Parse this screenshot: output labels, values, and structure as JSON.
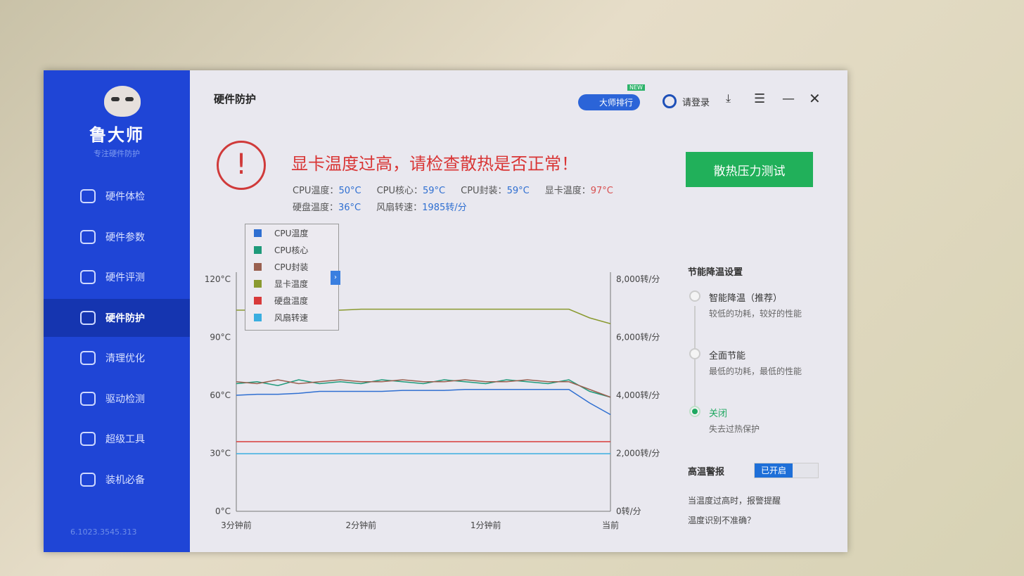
{
  "sidebar": {
    "brand": "鲁大师",
    "slogan": "专注硬件防护",
    "version": "6.1023.3545.313",
    "items": [
      {
        "label": "硬件体检"
      },
      {
        "label": "硬件参数"
      },
      {
        "label": "硬件评测"
      },
      {
        "label": "硬件防护",
        "active": true
      },
      {
        "label": "清理优化"
      },
      {
        "label": "驱动检测"
      },
      {
        "label": "超级工具"
      },
      {
        "label": "装机必备"
      }
    ]
  },
  "header": {
    "title": "硬件防护",
    "rank_label": "大师排行",
    "new_badge": "NEW",
    "login_label": "请登录"
  },
  "alert": {
    "message": "显卡温度过高，请检查散热是否正常！",
    "stats": [
      {
        "label": "CPU温度：",
        "value": "50°C"
      },
      {
        "label": "CPU核心：",
        "value": "59°C"
      },
      {
        "label": "CPU封装：",
        "value": "59°C"
      },
      {
        "label": "显卡温度：",
        "value": "97°C",
        "hot": true
      },
      {
        "label": "硬盘温度：",
        "value": "36°C"
      },
      {
        "label": "风扇转速：",
        "value": "1985转/分"
      }
    ]
  },
  "stress_test_button": "散热压力测试",
  "settings": {
    "title": "节能降温设置",
    "options": [
      {
        "label": "智能降温（推荐）",
        "desc": "较低的功耗，较好的性能",
        "selected": false
      },
      {
        "label": "全面节能",
        "desc": "最低的功耗，最低的性能",
        "selected": false
      },
      {
        "label": "关闭",
        "desc": "失去过热保护",
        "selected": true
      }
    ],
    "alarm_label": "高温警报",
    "alarm_state": "已开启",
    "alarm_desc": "当温度过高时，报警提醒",
    "inaccurate_link": "温度识别不准确？"
  },
  "colors": {
    "accent": "#1f45d6",
    "alert": "#d93636",
    "green": "#21b05a"
  },
  "chart_data": {
    "type": "line",
    "x_ticks": [
      "3分钟前",
      "2分钟前",
      "1分钟前",
      "当前"
    ],
    "y_left": {
      "ticks": [
        "0°C",
        "30°C",
        "60°C",
        "90°C",
        "120°C"
      ],
      "range": [
        0,
        120
      ]
    },
    "y_right": {
      "ticks": [
        "0转/分",
        "2,000转/分",
        "4,000转/分",
        "6,000转/分",
        "8,000转/分"
      ],
      "range": [
        0,
        8000
      ]
    },
    "x_seconds_ago": [
      180,
      170,
      160,
      150,
      140,
      130,
      120,
      110,
      100,
      90,
      80,
      70,
      60,
      50,
      40,
      30,
      20,
      10,
      0
    ],
    "series": [
      {
        "name": "CPU温度",
        "color": "#2f6fd1",
        "axis": "left",
        "values": [
          60,
          60.5,
          60.5,
          61,
          62,
          62,
          62,
          62,
          62.5,
          62.5,
          62.5,
          63,
          63,
          63,
          63,
          63,
          63,
          56,
          50
        ]
      },
      {
        "name": "CPU核心",
        "color": "#1f9a7a",
        "axis": "left",
        "values": [
          66,
          67,
          65,
          68,
          66,
          67,
          66,
          68,
          67,
          66,
          68,
          67,
          66,
          68,
          67,
          66,
          68,
          62,
          59
        ]
      },
      {
        "name": "CPU封装",
        "color": "#9a6050",
        "axis": "left",
        "values": [
          67,
          66,
          68,
          66,
          67,
          68,
          67,
          67,
          68,
          67,
          67,
          68,
          67,
          67,
          68,
          67,
          67,
          63,
          59
        ]
      },
      {
        "name": "显卡温度",
        "color": "#8a9a30",
        "axis": "left",
        "values": [
          104,
          104,
          104,
          104,
          104,
          104,
          104.5,
          104.5,
          104.5,
          104.5,
          104.5,
          104.5,
          104.5,
          104.5,
          104.5,
          104.5,
          104.5,
          100,
          97
        ]
      },
      {
        "name": "硬盘温度",
        "color": "#d83a3a",
        "axis": "left",
        "values": [
          36,
          36,
          36,
          36,
          36,
          36,
          36,
          36,
          36,
          36,
          36,
          36,
          36,
          36,
          36,
          36,
          36,
          36,
          36
        ]
      },
      {
        "name": "风扇转速",
        "color": "#3aaee0",
        "axis": "right",
        "values": [
          1985,
          1985,
          1985,
          1985,
          1985,
          1985,
          1985,
          1985,
          1985,
          1985,
          1985,
          1985,
          1985,
          1985,
          1985,
          1985,
          1985,
          1985,
          1985
        ]
      }
    ]
  }
}
